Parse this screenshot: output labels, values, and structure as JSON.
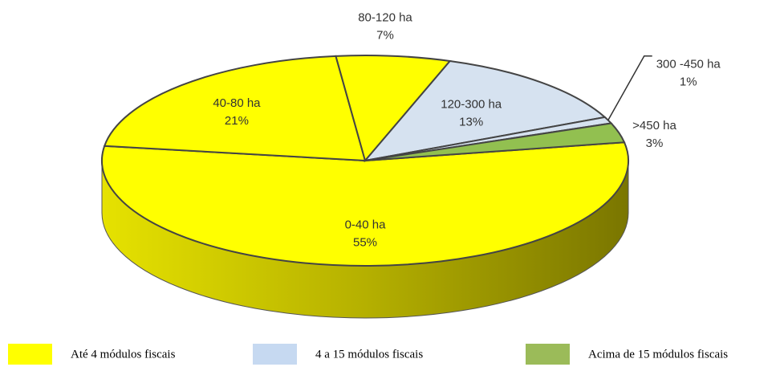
{
  "chart_data": {
    "type": "pie3d",
    "categories": [
      "0-40 ha",
      "40-80 ha",
      "80-120 ha",
      "120-300 ha",
      "300 -450 ha",
      ">450 ha"
    ],
    "values": [
      55,
      21,
      7,
      13,
      1,
      3
    ],
    "value_labels": [
      "55%",
      "21%",
      "7%",
      "13%",
      "1%",
      "3%"
    ],
    "colors": [
      "#ffff00",
      "#ffff00",
      "#ffff00",
      "#d6e2f0",
      "#d6e2f0",
      "#92c050"
    ],
    "legend": [
      {
        "label": "Até 4 módulos fiscais",
        "color": "#ffff00"
      },
      {
        "label": "4 a 15 módulos fiscais",
        "color": "#c6d9f1"
      },
      {
        "label": "Acima de 15 módulos fiscais",
        "color": "#9bbb59"
      }
    ]
  }
}
